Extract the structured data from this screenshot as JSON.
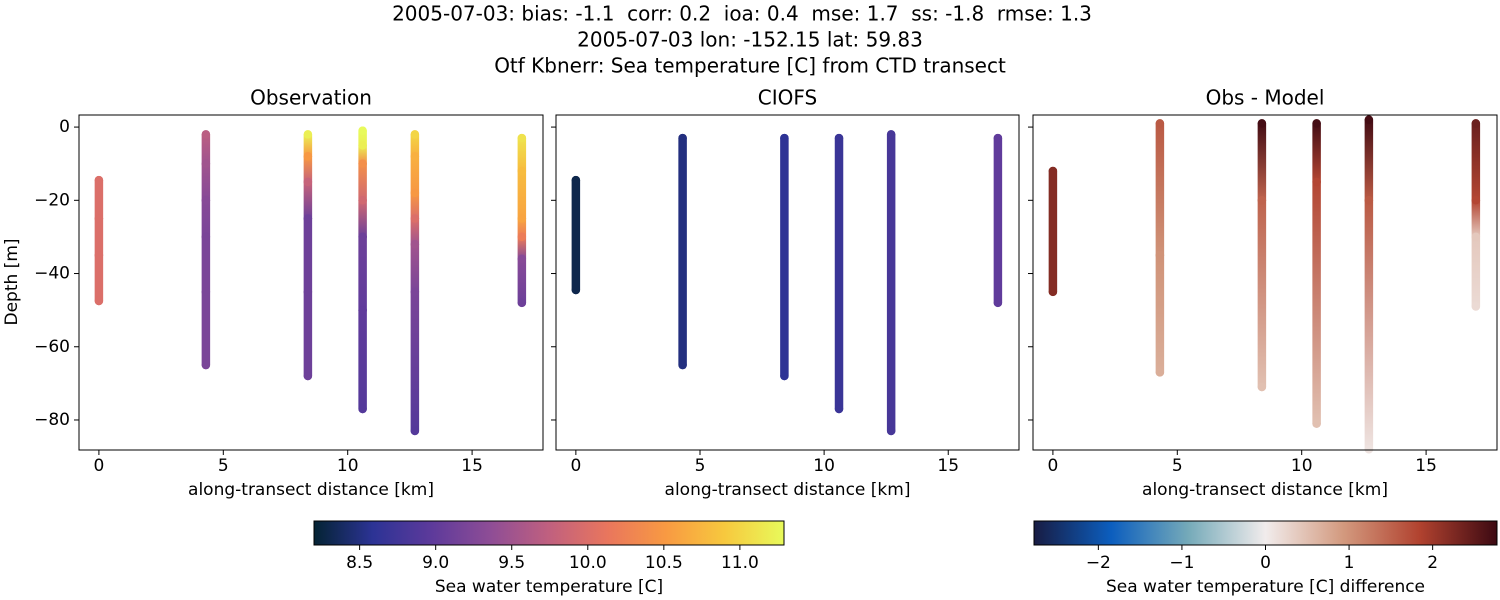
{
  "title": [
    "2005-07-03: bias: -1.1  corr: 0.2  ioa: 0.4  mse: 1.7  ss: -1.8  rmse: 1.3",
    "2005-07-03 lon: -152.15 lat: 59.83",
    "Otf Kbnerr: Sea temperature [C] from CTD transect"
  ],
  "chart_data": [
    {
      "type": "scatter",
      "title": "Observation",
      "xlabel": "along-transect distance [km]",
      "ylabel": "Depth [m]",
      "xlim": [
        -0.8,
        17.85
      ],
      "ylim": [
        -88.2,
        3.3
      ],
      "xticks": [
        0,
        5,
        10,
        15
      ],
      "yticks": [
        0,
        {
          "value": -20,
          "label": "−20"
        },
        {
          "value": -40,
          "label": "−40"
        },
        {
          "value": -60,
          "label": "−60"
        },
        {
          "value": -80,
          "label": "−80"
        }
      ],
      "series": [
        {
          "x": 0,
          "y": [
            -14.5,
            -25,
            -35,
            -47.5
          ],
          "values": [
            10.0,
            10.0,
            10.0,
            10.0
          ]
        },
        {
          "x": 4.3,
          "y": [
            -2,
            -10,
            -20,
            -30,
            -45,
            -65
          ],
          "values": [
            9.7,
            9.5,
            9.3,
            9.2,
            9.2,
            9.2
          ]
        },
        {
          "x": 8.4,
          "y": [
            -2,
            -8,
            -15,
            -25,
            -45,
            -68
          ],
          "values": [
            11.2,
            10.5,
            9.8,
            9.1,
            9.1,
            9.1
          ]
        },
        {
          "x": 10.6,
          "y": [
            -1,
            -5,
            -10,
            -20,
            -30,
            -50,
            -77
          ],
          "values": [
            11.3,
            11.2,
            10.4,
            9.9,
            9.1,
            9.0,
            8.9
          ]
        },
        {
          "x": 12.7,
          "y": [
            -2,
            -8,
            -18,
            -25,
            -32,
            -45,
            -83
          ],
          "values": [
            11.0,
            10.7,
            10.5,
            10.0,
            9.5,
            9.2,
            8.9
          ]
        },
        {
          "x": 17.0,
          "y": [
            -3,
            -12,
            -25,
            -30,
            -36,
            -48
          ],
          "values": [
            11.1,
            10.8,
            10.6,
            10.2,
            9.3,
            9.1
          ]
        }
      ],
      "colorbar": {
        "label": "Sea water temperature [C]",
        "lim": [
          8.2,
          11.29
        ],
        "ticks": [
          8.5,
          {
            "value": 9.0,
            "label": "9.0"
          },
          9.5,
          {
            "value": 10.0,
            "label": "10.0"
          },
          10.5,
          {
            "value": 11.0,
            "label": "11.0"
          }
        ],
        "colors": [
          "#042333",
          "#2c3395",
          "#5d3a9b",
          "#8e4d96",
          "#c0607f",
          "#e9765d",
          "#f89a42",
          "#f7c93e",
          "#e8fa5b"
        ]
      }
    },
    {
      "type": "scatter",
      "title": "CIOFS",
      "xlabel": "along-transect distance [km]",
      "xlim": [
        -0.8,
        17.85
      ],
      "ylim": [
        -88.2,
        3.3
      ],
      "xticks": [
        0,
        5,
        10,
        15
      ],
      "yticks": [
        0,
        -20,
        -40,
        -60,
        -80
      ],
      "series": [
        {
          "x": 0,
          "y": [
            -14.5,
            -44.5
          ],
          "values": [
            8.3,
            8.3
          ]
        },
        {
          "x": 4.3,
          "y": [
            -3,
            -65
          ],
          "values": [
            8.5,
            8.5
          ]
        },
        {
          "x": 8.4,
          "y": [
            -3,
            -68
          ],
          "values": [
            8.6,
            8.6
          ]
        },
        {
          "x": 10.6,
          "y": [
            -3,
            -77
          ],
          "values": [
            8.7,
            8.7
          ]
        },
        {
          "x": 12.7,
          "y": [
            -2,
            -83
          ],
          "values": [
            8.8,
            8.8
          ]
        },
        {
          "x": 17.0,
          "y": [
            -3,
            -48
          ],
          "values": [
            9.0,
            9.0
          ]
        }
      ]
    },
    {
      "type": "scatter",
      "title": "Obs - Model",
      "xlabel": "along-transect distance [km]",
      "xlim": [
        -0.8,
        17.85
      ],
      "ylim": [
        -88.2,
        3.3
      ],
      "xticks": [
        0,
        5,
        10,
        15
      ],
      "yticks": [
        0,
        -20,
        -40,
        -60,
        -80
      ],
      "series": [
        {
          "x": 0,
          "y": [
            -12,
            -45
          ],
          "values": [
            2.2,
            2.2
          ]
        },
        {
          "x": 4.3,
          "y": [
            1,
            -35,
            -67
          ],
          "values": [
            1.6,
            1.0,
            0.7
          ]
        },
        {
          "x": 8.4,
          "y": [
            1,
            -20,
            -71
          ],
          "values": [
            2.7,
            1.5,
            0.5
          ]
        },
        {
          "x": 10.6,
          "y": [
            1,
            -15,
            -81
          ],
          "values": [
            2.7,
            1.8,
            0.5
          ]
        },
        {
          "x": 12.7,
          "y": [
            2,
            -20,
            -88
          ],
          "values": [
            2.7,
            1.6,
            0.1
          ]
        },
        {
          "x": 17.0,
          "y": [
            1,
            -20,
            -30,
            -49
          ],
          "values": [
            2.4,
            1.8,
            0.4,
            0.2
          ]
        }
      ],
      "colorbar": {
        "label": "Sea water temperature [C] difference",
        "lim": [
          -2.77,
          2.77
        ],
        "ticks": [
          {
            "value": -2,
            "label": "−2"
          },
          {
            "value": -1,
            "label": "−1"
          },
          0,
          1,
          2
        ],
        "colors": [
          "#181c43",
          "#0c5ebe",
          "#75aab9",
          "#f1ecec",
          "#d39a7f",
          "#b1422f",
          "#3c0912"
        ]
      }
    }
  ]
}
